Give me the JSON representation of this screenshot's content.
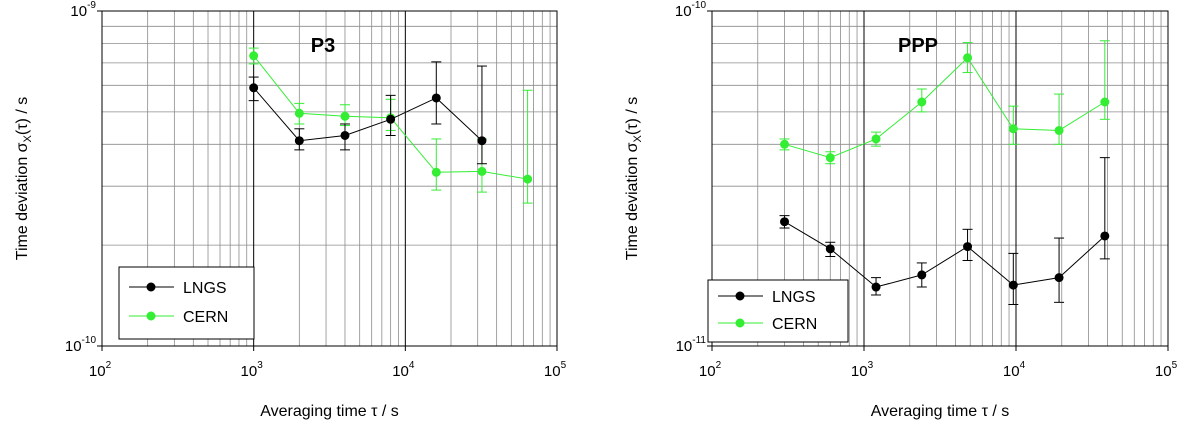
{
  "chart_data": [
    {
      "type": "scatter",
      "title": "P3",
      "xlabel": "Averaging time τ / s",
      "ylabel": "Time deviation σx(τ) / s",
      "ylabel_parts": {
        "pre": "Time deviation σ",
        "sub": "X",
        "post": "(τ) / s"
      },
      "x_scale": "log",
      "y_scale": "log",
      "xlim": [
        100,
        100000
      ],
      "ylim": [
        1e-10,
        1e-09
      ],
      "grid": true,
      "legend_position": "bottom-left",
      "x_ticks": [
        {
          "base": "10",
          "exp": "2",
          "value": 100
        },
        {
          "base": "10",
          "exp": "3",
          "value": 1000
        },
        {
          "base": "10",
          "exp": "4",
          "value": 10000
        },
        {
          "base": "10",
          "exp": "5",
          "value": 100000
        }
      ],
      "y_ticks": [
        {
          "base": "10",
          "exp": "-9",
          "value": 1e-09
        },
        {
          "base": "10",
          "exp": "-10",
          "value": 1e-10
        }
      ],
      "series": [
        {
          "name": "LNGS",
          "color": "#000000",
          "x": [
            1000,
            2000,
            4000,
            8000,
            16000,
            32000
          ],
          "y": [
            5.9e-10,
            4.1e-10,
            4.25e-10,
            4.75e-10,
            5.5e-10,
            4.1e-10
          ],
          "err_low": [
            5.4e-10,
            3.85e-10,
            3.85e-10,
            4.25e-10,
            4.6e-10,
            3.5e-10
          ],
          "err_high": [
            6.35e-10,
            4.45e-10,
            4.6e-10,
            5.6e-10,
            7.05e-10,
            6.85e-10
          ]
        },
        {
          "name": "CERN",
          "color": "#33ee33",
          "x": [
            1000,
            2000,
            4000,
            8000,
            16000,
            32000,
            64000
          ],
          "y": [
            7.35e-10,
            4.95e-10,
            4.85e-10,
            4.8e-10,
            3.3e-10,
            3.32e-10,
            3.15e-10
          ],
          "err_low": [
            6.95e-10,
            4.6e-10,
            4.55e-10,
            4.4e-10,
            2.92e-10,
            2.88e-10,
            2.67e-10
          ],
          "err_high": [
            7.75e-10,
            5.3e-10,
            5.25e-10,
            5.45e-10,
            4.15e-10,
            4.15e-10,
            5.8e-10
          ]
        }
      ]
    },
    {
      "type": "scatter",
      "title": "PPP",
      "xlabel": "Averaging time τ / s",
      "ylabel": "Time deviation σx(τ) / s",
      "ylabel_parts": {
        "pre": "Time deviation σ",
        "sub": "X",
        "post": "(τ) / s"
      },
      "x_scale": "log",
      "y_scale": "log",
      "xlim": [
        100,
        100000
      ],
      "ylim": [
        1e-11,
        1e-10
      ],
      "grid": true,
      "legend_position": "bottom-left",
      "x_ticks": [
        {
          "base": "10",
          "exp": "2",
          "value": 100
        },
        {
          "base": "10",
          "exp": "3",
          "value": 1000
        },
        {
          "base": "10",
          "exp": "4",
          "value": 10000
        },
        {
          "base": "10",
          "exp": "5",
          "value": 100000
        }
      ],
      "y_ticks": [
        {
          "base": "10",
          "exp": "-10",
          "value": 1e-10
        },
        {
          "base": "10",
          "exp": "-11",
          "value": 1e-11
        }
      ],
      "series": [
        {
          "name": "LNGS",
          "color": "#000000",
          "x": [
            300,
            600,
            1200,
            2400,
            4800,
            9600,
            19200,
            38400
          ],
          "y": [
            2.35e-11,
            1.95e-11,
            1.5e-11,
            1.63e-11,
            1.98e-11,
            1.52e-11,
            1.6e-11,
            2.13e-11
          ],
          "err_low": [
            2.25e-11,
            1.85e-11,
            1.42e-11,
            1.5e-11,
            1.8e-11,
            1.33e-11,
            1.35e-11,
            1.82e-11
          ],
          "err_high": [
            2.45e-11,
            2.04e-11,
            1.6e-11,
            1.77e-11,
            2.23e-11,
            1.89e-11,
            2.1e-11,
            3.65e-11
          ]
        },
        {
          "name": "CERN",
          "color": "#33ee33",
          "x": [
            300,
            600,
            1200,
            2400,
            4800,
            9600,
            19200,
            38400
          ],
          "y": [
            4e-11,
            3.65e-11,
            4.15e-11,
            5.35e-11,
            7.25e-11,
            4.45e-11,
            4.4e-11,
            5.35e-11
          ],
          "err_low": [
            3.85e-11,
            3.5e-11,
            3.95e-11,
            5e-11,
            6.55e-11,
            4e-11,
            4e-11,
            4.75e-11
          ],
          "err_high": [
            4.15e-11,
            3.8e-11,
            4.35e-11,
            5.85e-11,
            8.05e-11,
            5.2e-11,
            5.65e-11,
            8.15e-11
          ]
        }
      ]
    }
  ]
}
